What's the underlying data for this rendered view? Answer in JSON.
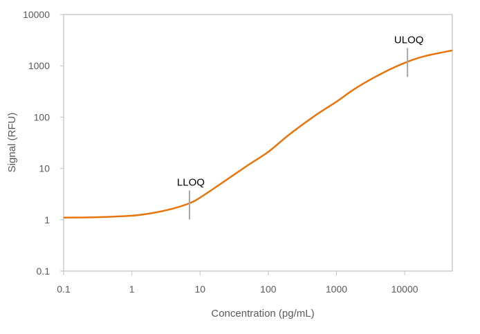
{
  "chart_data": {
    "type": "line",
    "title": "",
    "xlabel": "Concentration (pg/mL)",
    "ylabel": "Signal (RFU)",
    "xscale": "log",
    "yscale": "log",
    "xlim": [
      0.1,
      50000
    ],
    "ylim": [
      0.1,
      10000
    ],
    "xticks": [
      "0.1",
      "1",
      "10",
      "100",
      "1000",
      "10000"
    ],
    "yticks": [
      "0.1",
      "1",
      "10",
      "100",
      "1000",
      "10000"
    ],
    "grid": false,
    "line_color": "#E8740C",
    "series": [
      {
        "x": [
          0.1,
          0.3,
          1,
          2,
          4,
          7,
          10,
          20,
          50,
          100,
          200,
          500,
          1000,
          2000,
          5000,
          11000,
          20000,
          50000
        ],
        "values": [
          1.1,
          1.12,
          1.2,
          1.35,
          1.65,
          2.1,
          2.7,
          5,
          11.5,
          21,
          45,
          110,
          200,
          380,
          750,
          1200,
          1550,
          2000
        ]
      }
    ],
    "annotations": [
      {
        "text": "LLOQ",
        "x": 7,
        "y": 2
      },
      {
        "text": "ULOQ",
        "x": 11000,
        "y": 1200
      }
    ]
  }
}
